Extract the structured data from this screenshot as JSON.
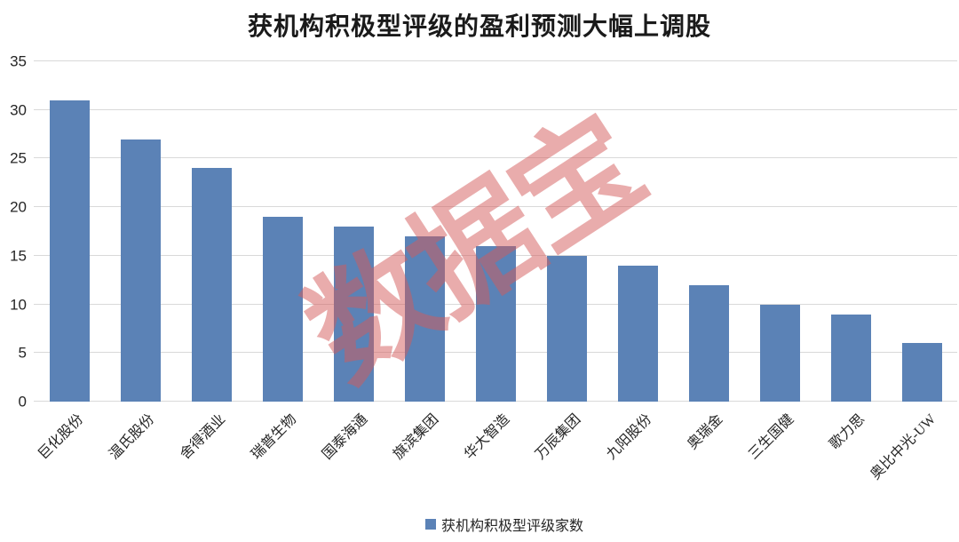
{
  "chart_data": {
    "type": "bar",
    "title": "获机构积极型评级的盈利预测大幅上调股",
    "categories": [
      "巨化股份",
      "温氏股份",
      "舍得酒业",
      "瑞普生物",
      "国泰海通",
      "旗滨集团",
      "华大智造",
      "万辰集团",
      "九阳股份",
      "奥瑞金",
      "三生国健",
      "歌力思",
      "奥比中光-UW"
    ],
    "series": [
      {
        "name": "获机构积极型评级家数",
        "values": [
          31,
          27,
          24,
          19,
          18,
          17,
          16,
          15,
          14,
          12,
          10,
          9,
          6
        ]
      }
    ],
    "xlabel": "",
    "ylabel": "",
    "ylim": [
      0,
      35
    ],
    "ytick_step": 5,
    "grid": true,
    "legend_position": "bottom",
    "watermark": "数据宝",
    "colors": {
      "bar": "#5b82b6",
      "gridline": "#d9d9d9",
      "title_text": "#1a1a1a",
      "watermark": "#d35a5a",
      "watermark_opacity": 0.5
    }
  }
}
